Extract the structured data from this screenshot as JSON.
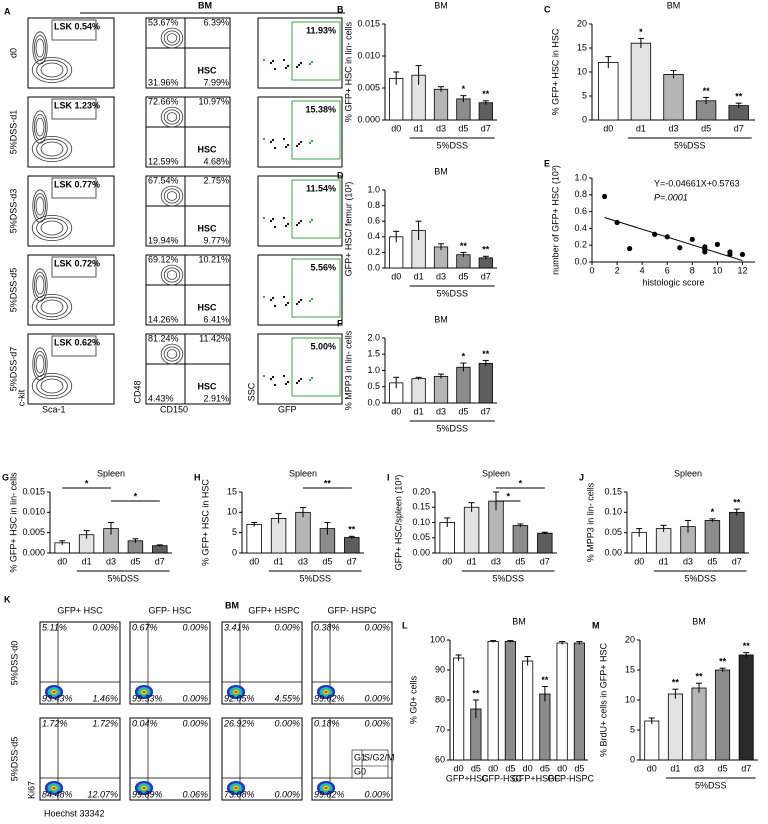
{
  "panel_A": {
    "letter": "A",
    "title": "BM",
    "rows": [
      {
        "label": "d0",
        "lsk": "LSK 0.54%",
        "quadrants": [
          "53.67%",
          "6.39%",
          "31.96%",
          "7.99%"
        ],
        "gfp": "11.93%"
      },
      {
        "label": "5%DSS-d1",
        "lsk": "LSK 1.23%",
        "quadrants": [
          "72.66%",
          "10.97%",
          "12.59%",
          "4.68%"
        ],
        "gfp": "15.38%"
      },
      {
        "label": "5%DSS-d3",
        "lsk": "LSK 0.77%",
        "quadrants": [
          "67.54%",
          "2.75%",
          "19.94%",
          "9.77%"
        ],
        "gfp": "11.54%"
      },
      {
        "label": "5%DSS-d5",
        "lsk": "LSK 0.72%",
        "quadrants": [
          "69.12%",
          "10.21%",
          "14.26%",
          "6.41%"
        ],
        "gfp": "5.56%"
      },
      {
        "label": "5%DSS-d7",
        "lsk": "LSK 0.62%",
        "quadrants": [
          "81.24%",
          "11.42%",
          "4.43%",
          "2.91%"
        ],
        "gfp": "5.00%"
      }
    ],
    "gate_label": "HSC",
    "axis_labels": {
      "ckit": "c-kit",
      "sca1": "Sca-1",
      "cd48": "CD48",
      "cd150": "CD150",
      "ssc": "SSC",
      "gfp": "GFP"
    }
  },
  "panel_K": {
    "letter": "K",
    "title": "BM",
    "columns": [
      "GFP+ HSC",
      "GFP- HSC",
      "GFP+ HSPC",
      "GFP- HSPC"
    ],
    "rows": [
      {
        "label": "5%DSS-d0",
        "plots": [
          [
            "5.11%",
            "0.00%",
            "93.43%",
            "1.46%"
          ],
          [
            "0.67%",
            "0.00%",
            "99.33%",
            "0.00%"
          ],
          [
            "3.41%",
            "0.00%",
            "92.05%",
            "4.55%"
          ],
          [
            "0.38%",
            "0.00%",
            "99.62%",
            "0.00%"
          ]
        ]
      },
      {
        "label": "5%DSS-d5",
        "plots": [
          [
            "1.72%",
            "1.72%",
            "84.48%",
            "12.07%"
          ],
          [
            "0.04%",
            "0.00%",
            "99.89%",
            "0.06%"
          ],
          [
            "26.92%",
            "0.00%",
            "73.08%",
            "0.00%"
          ],
          [
            "0.18%",
            "0.00%",
            "99.82%",
            "0.00%"
          ]
        ]
      }
    ],
    "legend": [
      "G1",
      "S/G2/M",
      "G0"
    ],
    "xlabel": "Hoechst 33342",
    "ylabel": "Ki67"
  },
  "chart_data": [
    {
      "type": "bar",
      "panel": "B",
      "title": "BM",
      "ylabel": "% GFP+ HSC in lin- cells",
      "group_label": "5%DSS",
      "categories": [
        "d0",
        "d1",
        "d3",
        "d5",
        "d7"
      ],
      "values": [
        0.0065,
        0.007,
        0.0048,
        0.0033,
        0.0027
      ],
      "errors": [
        0.001,
        0.0015,
        0.0004,
        0.0005,
        0.0003
      ],
      "significance": [
        null,
        null,
        null,
        "*",
        "**"
      ],
      "colors": [
        "#ffffff",
        "#e3e3e3",
        "#b5b5b5",
        "#8c8c8c",
        "#5e5e5e"
      ],
      "ylim": [
        0,
        0.015
      ],
      "yticks": [
        {
          "value": 0,
          "label": "0.000"
        },
        {
          "value": 0.005,
          "label": "0.005"
        },
        {
          "value": 0.01,
          "label": "0.010"
        },
        {
          "value": 0.015,
          "label": "0.015"
        }
      ]
    },
    {
      "type": "bar",
      "panel": "C",
      "title": "BM",
      "ylabel": "% GFP+ HSC in HSC",
      "group_label": "5%DSS",
      "categories": [
        "d0",
        "d1",
        "d3",
        "d5",
        "d7"
      ],
      "values": [
        12,
        16,
        9.5,
        4,
        3
      ],
      "errors": [
        1.2,
        1,
        0.8,
        0.7,
        0.5
      ],
      "significance": [
        null,
        "*",
        null,
        "**",
        "**"
      ],
      "colors": [
        "#ffffff",
        "#e3e3e3",
        "#b5b5b5",
        "#8c8c8c",
        "#5e5e5e"
      ],
      "ylim": [
        0,
        20
      ],
      "yticks": [
        0,
        5,
        10,
        15,
        20
      ]
    },
    {
      "type": "bar",
      "panel": "D",
      "title": "BM",
      "ylabel": "GFP+ HSC/ femur (10³)",
      "group_label": "5%DSS",
      "categories": [
        "d0",
        "d1",
        "d3",
        "d5",
        "d7"
      ],
      "values": [
        0.4,
        0.48,
        0.27,
        0.17,
        0.13
      ],
      "errors": [
        0.07,
        0.12,
        0.04,
        0.03,
        0.02
      ],
      "significance": [
        null,
        null,
        null,
        "**",
        "**"
      ],
      "colors": [
        "#ffffff",
        "#e3e3e3",
        "#b5b5b5",
        "#8c8c8c",
        "#5e5e5e"
      ],
      "ylim": [
        0,
        1
      ],
      "yticks": [
        {
          "value": 0,
          "label": "0.0"
        },
        0.2,
        0.4,
        0.6,
        0.8,
        {
          "value": 1,
          "label": "1.0"
        }
      ]
    },
    {
      "type": "scatter",
      "panel": "E",
      "xlabel": "histologic score",
      "ylabel": "number of GFP+ HSC (10³)",
      "equation": "Y=-0.04661X+0.5763",
      "p_value_label": "P=.0001",
      "fit": {
        "slope": -0.04661,
        "intercept": 0.5763
      },
      "x": [
        1,
        2,
        3,
        5,
        6,
        7,
        8,
        9,
        9,
        9,
        10,
        11,
        11,
        12
      ],
      "y": [
        0.78,
        0.47,
        0.16,
        0.33,
        0.3,
        0.17,
        0.27,
        0.18,
        0.12,
        0.15,
        0.21,
        0.09,
        0.12,
        0.09
      ],
      "color": "#000000",
      "xlim": [
        0,
        13
      ],
      "xticks": [
        0,
        2,
        4,
        6,
        8,
        10,
        12
      ],
      "ylim": [
        0,
        1
      ],
      "yticks": [
        {
          "value": 0,
          "label": "0.0"
        },
        0.2,
        0.4,
        0.6,
        0.8,
        {
          "value": 1,
          "label": "1.0"
        }
      ]
    },
    {
      "type": "bar",
      "panel": "F",
      "title": "BM",
      "ylabel": "% MPP3 in lin- cells",
      "group_label": "5%DSS",
      "categories": [
        "d0",
        "d1",
        "d3",
        "d5",
        "d7"
      ],
      "values": [
        0.62,
        0.75,
        0.82,
        1.1,
        1.22
      ],
      "errors": [
        0.17,
        0.04,
        0.07,
        0.13,
        0.09
      ],
      "significance": [
        null,
        null,
        null,
        "*",
        "**"
      ],
      "colors": [
        "#ffffff",
        "#e3e3e3",
        "#b5b5b5",
        "#8c8c8c",
        "#5e5e5e"
      ],
      "ylim": [
        0,
        2
      ],
      "yticks": [
        {
          "value": 0,
          "label": "0.0"
        },
        0.5,
        {
          "value": 1,
          "label": "1.0"
        },
        1.5,
        {
          "value": 2,
          "label": "2.0"
        }
      ]
    },
    {
      "type": "bar",
      "panel": "G",
      "title": "Spleen",
      "ylabel": "% GFP+ HSC in lin- cells",
      "group_label": "5%DSS",
      "categories": [
        "d0",
        "d1",
        "d3",
        "d5",
        "d7"
      ],
      "values": [
        0.0025,
        0.0045,
        0.006,
        0.003,
        0.0018
      ],
      "errors": [
        0.0005,
        0.001,
        0.0015,
        0.0005,
        0.0002
      ],
      "significance": [
        null,
        null,
        null,
        null,
        null
      ],
      "colors": [
        "#ffffff",
        "#e3e3e3",
        "#b5b5b5",
        "#8c8c8c",
        "#5e5e5e"
      ],
      "brackets": [
        {
          "from": "d0",
          "to": "d3",
          "label": "*"
        },
        {
          "from": "d3",
          "to": "d7",
          "label": "*"
        }
      ],
      "ylim": [
        0,
        0.015
      ],
      "yticks": [
        {
          "value": 0,
          "label": "0.000"
        },
        {
          "value": 0.005,
          "label": "0.005"
        },
        {
          "value": 0.01,
          "label": "0.010"
        },
        {
          "value": 0.015,
          "label": "0.015"
        }
      ]
    },
    {
      "type": "bar",
      "panel": "H",
      "title": "Spleen",
      "ylabel": "% GFP+ HSC  in HSC",
      "group_label": "5%DSS",
      "categories": [
        "d0",
        "d1",
        "d3",
        "d5",
        "d7"
      ],
      "values": [
        7,
        8.5,
        10,
        6,
        3.8
      ],
      "errors": [
        0.5,
        1.2,
        1.2,
        1.5,
        0.3
      ],
      "significance": [
        null,
        null,
        null,
        null,
        "**"
      ],
      "colors": [
        "#ffffff",
        "#e3e3e3",
        "#b5b5b5",
        "#8c8c8c",
        "#5e5e5e"
      ],
      "brackets": [
        {
          "from": "d3",
          "to": "d7",
          "label": "**"
        }
      ],
      "ylim": [
        0,
        15
      ],
      "yticks": [
        0,
        5,
        10,
        15
      ]
    },
    {
      "type": "bar",
      "panel": "I",
      "title": "Spleen",
      "ylabel": "GFP+ HSC/spleen (10³)",
      "group_label": "5%DSS",
      "categories": [
        "d0",
        "d1",
        "d3",
        "d5",
        "d7"
      ],
      "values": [
        0.1,
        0.15,
        0.17,
        0.09,
        0.065
      ],
      "errors": [
        0.015,
        0.015,
        0.03,
        0.005,
        0.003
      ],
      "significance": [
        null,
        null,
        null,
        null,
        null
      ],
      "colors": [
        "#ffffff",
        "#e3e3e3",
        "#b5b5b5",
        "#8c8c8c",
        "#5e5e5e"
      ],
      "brackets": [
        {
          "from": "d3",
          "to": "d7",
          "label": "*"
        },
        {
          "from": "d3",
          "to": "d5",
          "label": "*"
        }
      ],
      "ylim": [
        0,
        0.2
      ],
      "yticks": [
        {
          "value": 0,
          "label": "0.00"
        },
        {
          "value": 0.05,
          "label": "0.05"
        },
        {
          "value": 0.1,
          "label": "0.10"
        },
        {
          "value": 0.15,
          "label": "0.15"
        },
        {
          "value": 0.2,
          "label": "0.20"
        }
      ]
    },
    {
      "type": "bar",
      "panel": "J",
      "title": "Spleen",
      "ylabel": "% MPP3 in lin- cells",
      "group_label": "5%DSS",
      "categories": [
        "d0",
        "d1",
        "d3",
        "d5",
        "d7"
      ],
      "values": [
        0.05,
        0.06,
        0.065,
        0.08,
        0.1
      ],
      "errors": [
        0.01,
        0.008,
        0.015,
        0.004,
        0.008
      ],
      "significance": [
        null,
        null,
        null,
        "*",
        "**"
      ],
      "colors": [
        "#ffffff",
        "#e3e3e3",
        "#b5b5b5",
        "#8c8c8c",
        "#5e5e5e"
      ],
      "ylim": [
        0,
        0.15
      ],
      "yticks": [
        {
          "value": 0,
          "label": "0.00"
        },
        {
          "value": 0.05,
          "label": "0.05"
        },
        {
          "value": 0.1,
          "label": "0.10"
        },
        {
          "value": 0.15,
          "label": "0.15"
        }
      ]
    },
    {
      "type": "bar",
      "panel": "L",
      "title": "BM",
      "ylabel": "% G0+ cells",
      "categories": [
        "d0",
        "d5",
        "d0",
        "d5",
        "d0",
        "d5",
        "d0",
        "d5"
      ],
      "groups": [
        "GFP+HSC",
        "GFP-HSC",
        "GFP+HSPC",
        "GFP-HSPC"
      ],
      "values": [
        94,
        77,
        99.5,
        99.5,
        93,
        82,
        99,
        99
      ],
      "errors": [
        1,
        3,
        0.3,
        0.3,
        1.5,
        2.5,
        0.5,
        0.5
      ],
      "significance": [
        null,
        "**",
        null,
        null,
        null,
        "**",
        null,
        null
      ],
      "colors": [
        "#ffffff",
        "#8c8c8c",
        "#ffffff",
        "#8c8c8c",
        "#ffffff",
        "#8c8c8c",
        "#ffffff",
        "#8c8c8c"
      ],
      "ylim": [
        60,
        100
      ],
      "yticks": [
        60,
        70,
        80,
        90,
        100
      ]
    },
    {
      "type": "bar",
      "panel": "M",
      "title": "BM",
      "ylabel": "% BrdU+ cells in GFP+ HSC",
      "group_label": "5%DSS",
      "categories": [
        "d0",
        "d1",
        "d3",
        "d5",
        "d7"
      ],
      "values": [
        6.5,
        11,
        12,
        15,
        17.5
      ],
      "errors": [
        0.5,
        0.8,
        0.8,
        0.3,
        0.4
      ],
      "significance": [
        null,
        "**",
        "**",
        "**",
        "**"
      ],
      "colors": [
        "#ffffff",
        "#e3e3e3",
        "#b5b5b5",
        "#8c8c8c",
        "#2a2a2a"
      ],
      "ylim": [
        0,
        20
      ],
      "yticks": [
        0,
        5,
        10,
        15,
        20
      ]
    }
  ]
}
